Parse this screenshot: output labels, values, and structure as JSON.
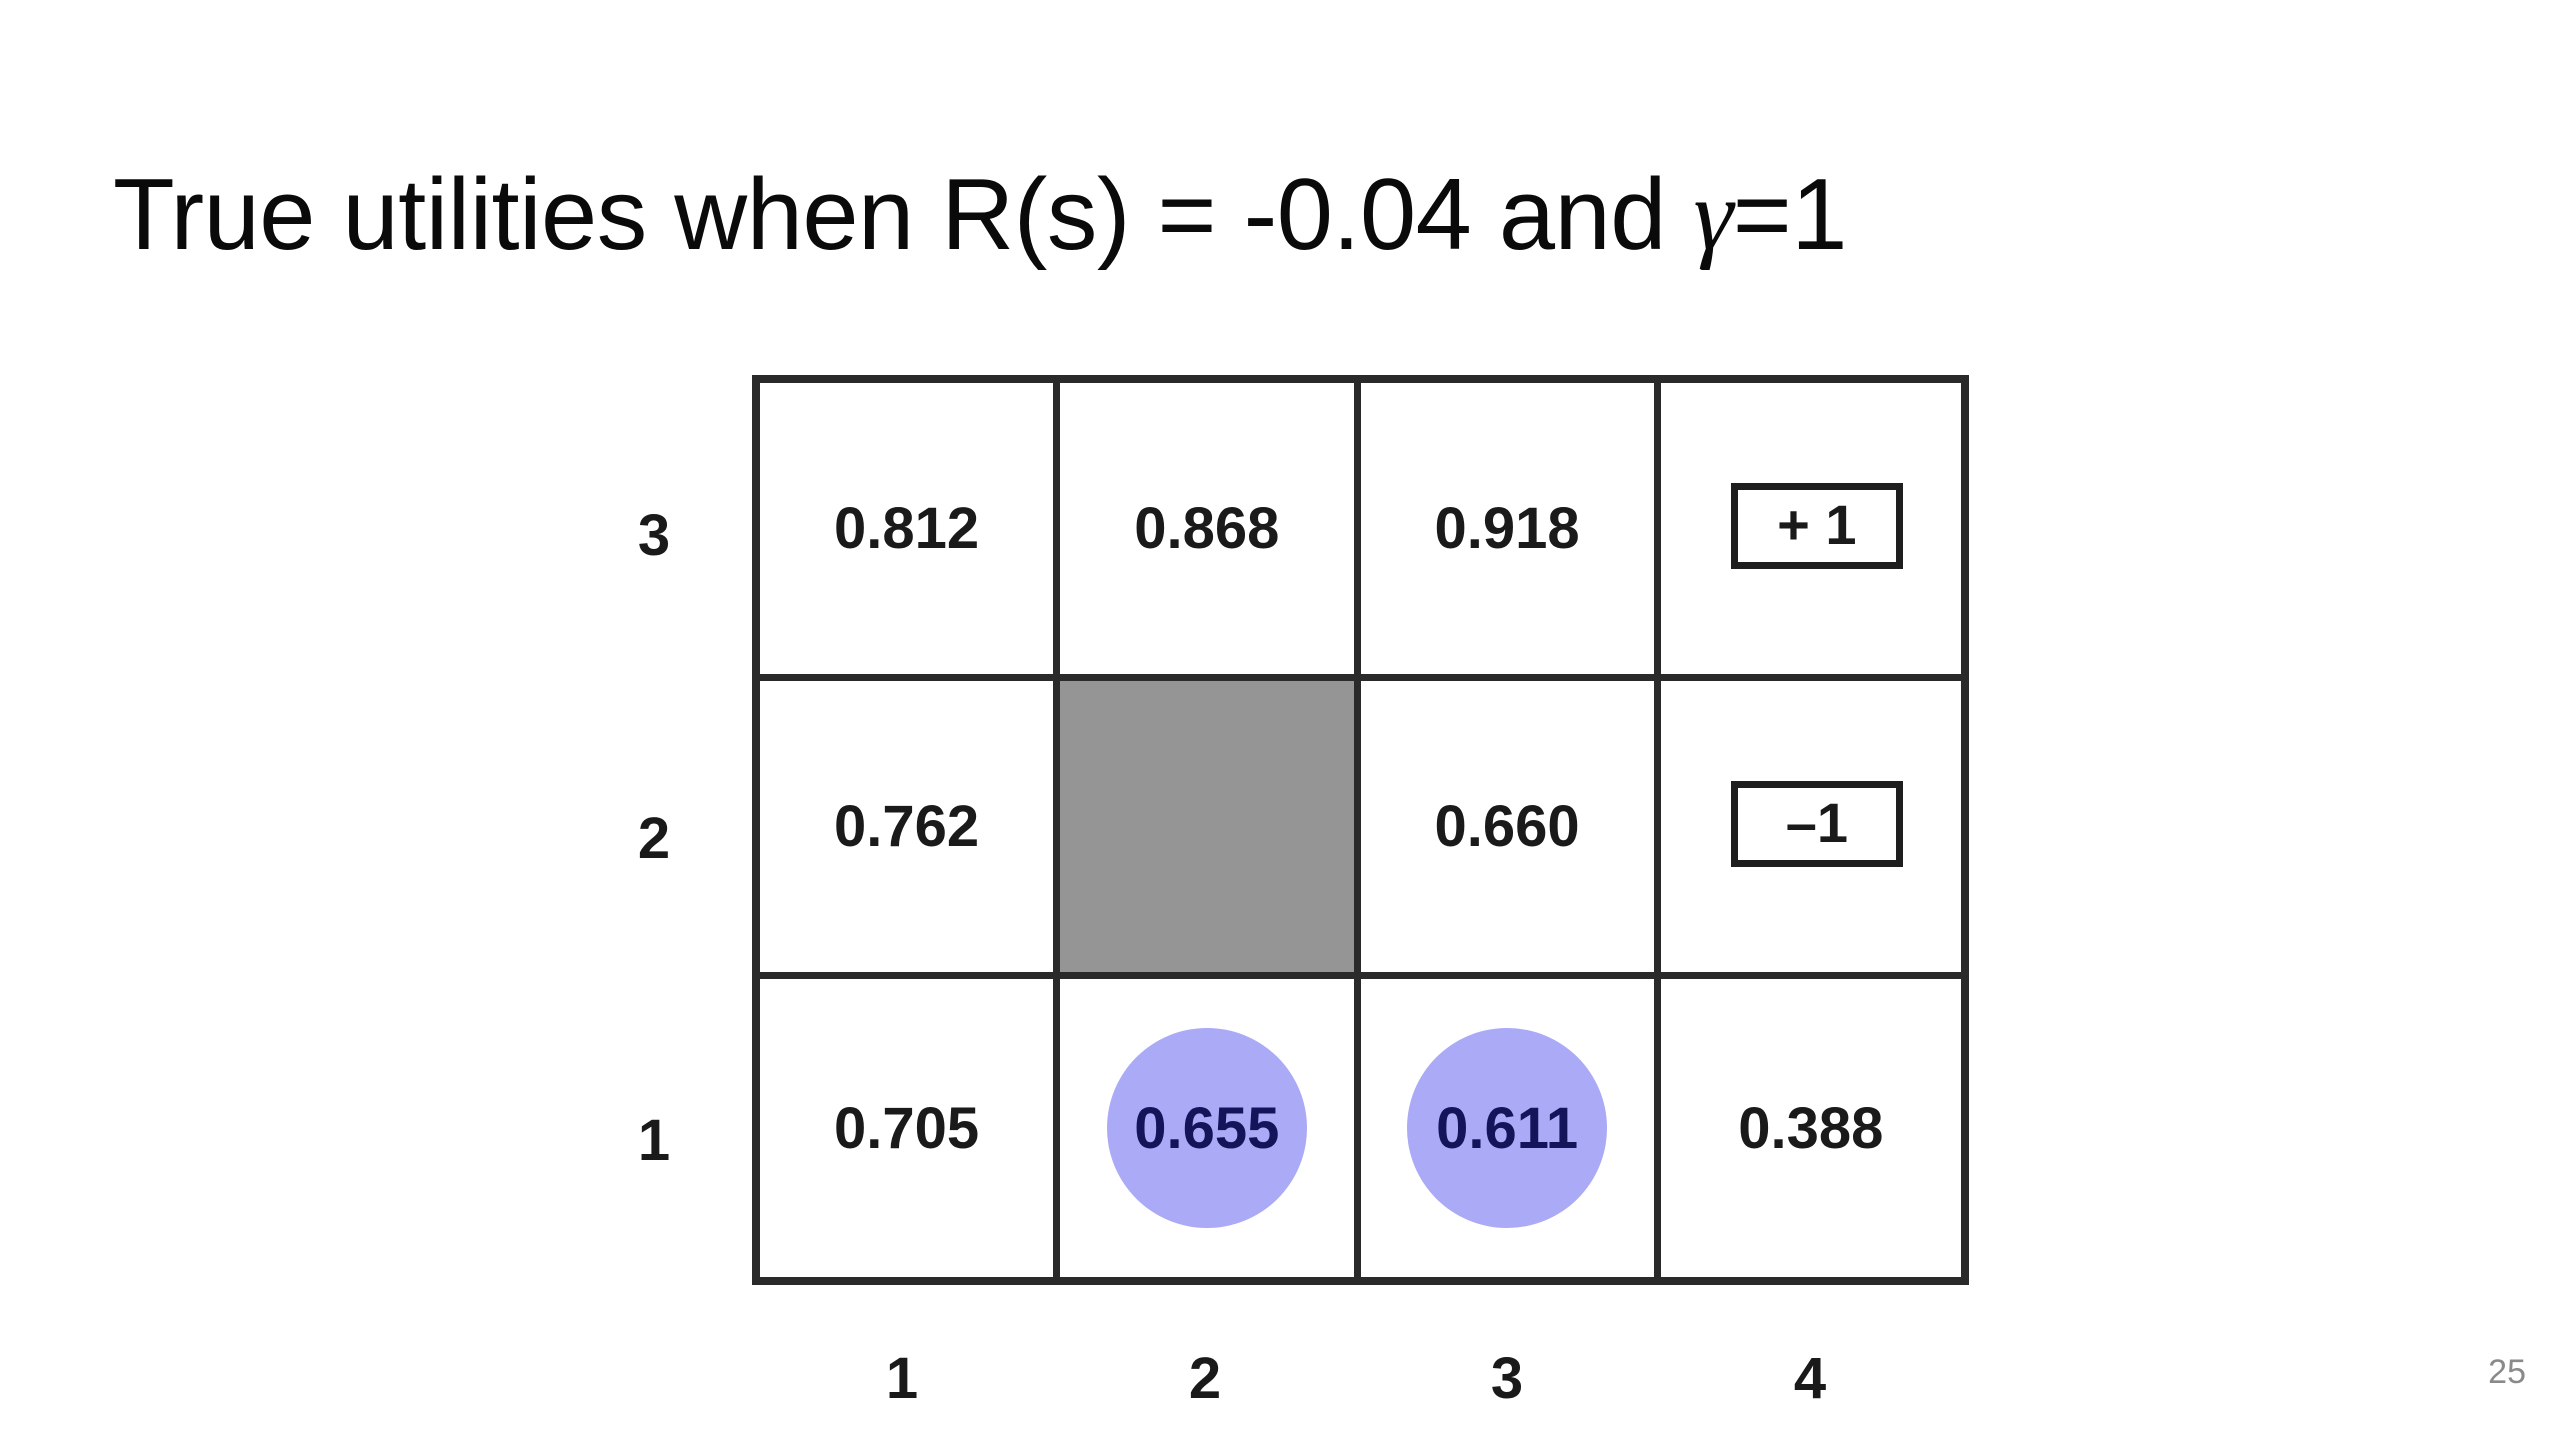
{
  "slide": {
    "title_prefix": "True utilities when R(s) = -0.04 and ",
    "title_gamma": "γ",
    "title_suffix": "=1",
    "page_number": "25"
  },
  "grid": {
    "row_labels": [
      "3",
      "2",
      "1"
    ],
    "col_labels": [
      "1",
      "2",
      "3",
      "4"
    ],
    "rows": [
      [
        {
          "value": "0.812",
          "kind": "utility"
        },
        {
          "value": "0.868",
          "kind": "utility"
        },
        {
          "value": "0.918",
          "kind": "utility"
        },
        {
          "value": "+ 1",
          "kind": "terminal"
        }
      ],
      [
        {
          "value": "0.762",
          "kind": "utility"
        },
        {
          "value": "",
          "kind": "wall"
        },
        {
          "value": "0.660",
          "kind": "utility"
        },
        {
          "value": "–1",
          "kind": "terminal"
        }
      ],
      [
        {
          "value": "0.705",
          "kind": "utility"
        },
        {
          "value": "0.655",
          "kind": "highlighted"
        },
        {
          "value": "0.611",
          "kind": "highlighted"
        },
        {
          "value": "0.388",
          "kind": "utility"
        }
      ]
    ],
    "colors": {
      "wall": "#959595",
      "highlight": "#aaaaf6",
      "border": "#2a2a2a"
    }
  }
}
